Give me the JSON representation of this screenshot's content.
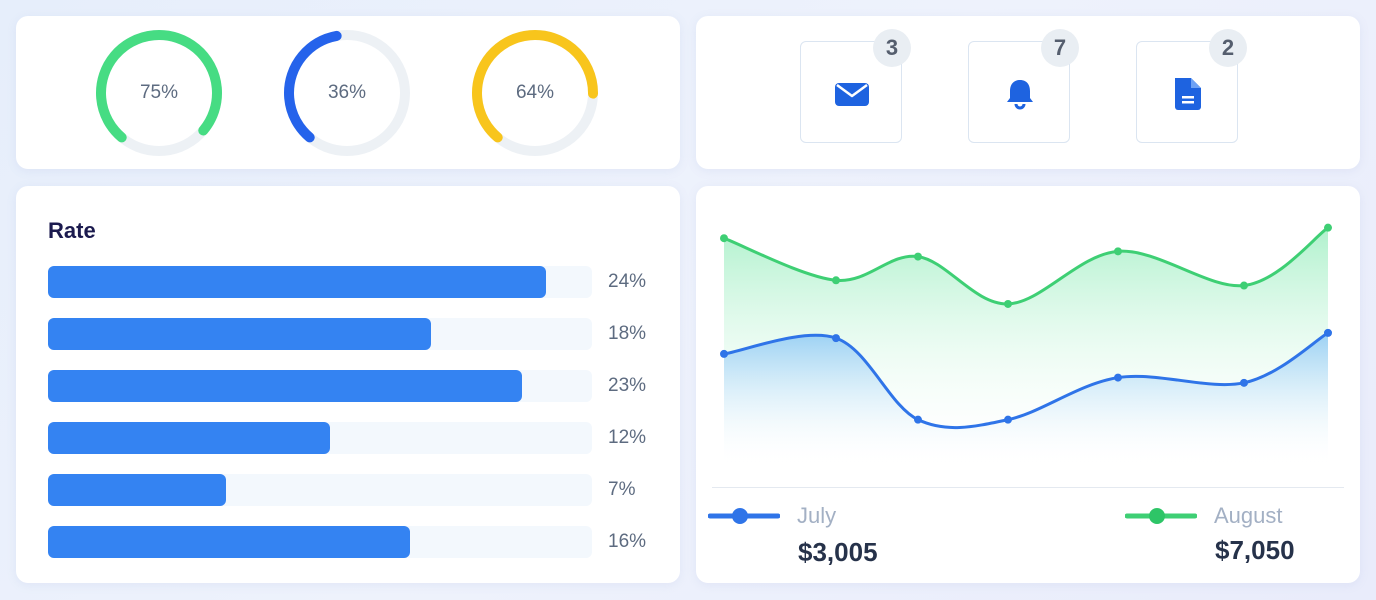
{
  "gauges": [
    {
      "label": "75%",
      "value": 75,
      "color": "#46dc83"
    },
    {
      "label": "36%",
      "value": 36,
      "color": "#2563eb"
    },
    {
      "label": "64%",
      "value": 64,
      "color": "#f8c51c"
    }
  ],
  "notifications": [
    {
      "icon": "envelope-icon",
      "count": "3"
    },
    {
      "icon": "bell-icon",
      "count": "7"
    },
    {
      "icon": "document-icon",
      "count": "2"
    }
  ],
  "rate": {
    "title": "Rate",
    "bars": [
      {
        "label": "24%",
        "fill_pct": 91.5
      },
      {
        "label": "18%",
        "fill_pct": 70.4
      },
      {
        "label": "23%",
        "fill_pct": 87.1
      },
      {
        "label": "12%",
        "fill_pct": 51.8
      },
      {
        "label": "7%",
        "fill_pct": 32.7
      },
      {
        "label": "16%",
        "fill_pct": 66.5
      }
    ]
  },
  "chart_data": {
    "type": "area",
    "x": [
      1,
      2,
      3,
      4,
      5,
      6,
      7
    ],
    "series": [
      {
        "name": "August",
        "color": "#3ecf74",
        "values": [
          87,
          71,
          80,
          62,
          82,
          69,
          91
        ]
      },
      {
        "name": "July",
        "color": "#2f74e8",
        "values": [
          43,
          49,
          18,
          18,
          34,
          32,
          51
        ]
      }
    ],
    "ylim": [
      0,
      100
    ],
    "grid": false
  },
  "legend": {
    "july": {
      "name": "July",
      "value": "$3,005"
    },
    "august": {
      "name": "August",
      "value": "$7,050"
    }
  },
  "colors": {
    "bar": "#3483f2",
    "track": "#eef3f7"
  }
}
